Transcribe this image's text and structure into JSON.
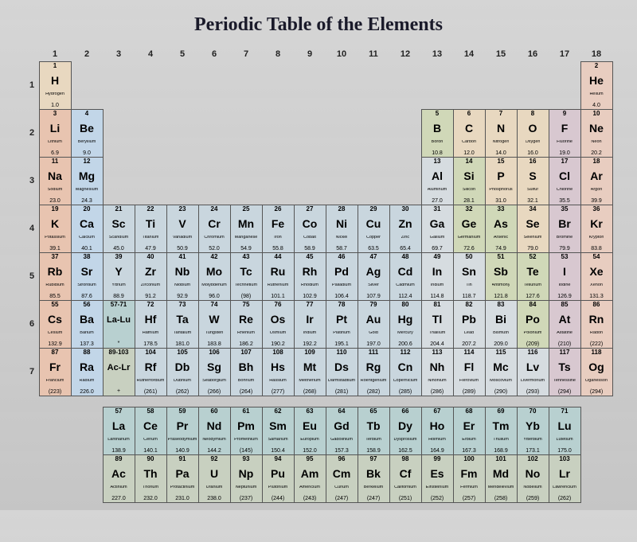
{
  "title": "Periodic Table of the Elements",
  "colors": {
    "alkali": "#e8c4b0",
    "alkaline": "#c2d6e8",
    "transition": "#c9d6de",
    "posttrans": "#d6dce0",
    "metalloid": "#d0d8b8",
    "nonmetal": "#e8d8c0",
    "halogen": "#d8c8d0",
    "noble": "#e8cdc0",
    "lanth": "#b8d0d0",
    "act": "#c8d0c0"
  },
  "groups": [
    "1",
    "2",
    "3",
    "4",
    "5",
    "6",
    "7",
    "8",
    "9",
    "10",
    "11",
    "12",
    "13",
    "14",
    "15",
    "16",
    "17",
    "18"
  ],
  "periods": [
    "1",
    "2",
    "3",
    "4",
    "5",
    "6",
    "7"
  ],
  "elements": [
    {
      "n": 1,
      "s": "H",
      "nm": "Hydrogen",
      "m": "1.0",
      "g": 1,
      "p": 1,
      "c": "nonmetal"
    },
    {
      "n": 2,
      "s": "He",
      "nm": "Helium",
      "m": "4.0",
      "g": 18,
      "p": 1,
      "c": "noble"
    },
    {
      "n": 3,
      "s": "Li",
      "nm": "Lithium",
      "m": "6.9",
      "g": 1,
      "p": 2,
      "c": "alkali"
    },
    {
      "n": 4,
      "s": "Be",
      "nm": "Beryllium",
      "m": "9.0",
      "g": 2,
      "p": 2,
      "c": "alkaline"
    },
    {
      "n": 5,
      "s": "B",
      "nm": "Boron",
      "m": "10.8",
      "g": 13,
      "p": 2,
      "c": "metalloid"
    },
    {
      "n": 6,
      "s": "C",
      "nm": "Carbon",
      "m": "12.0",
      "g": 14,
      "p": 2,
      "c": "nonmetal"
    },
    {
      "n": 7,
      "s": "N",
      "nm": "Nitrogen",
      "m": "14.0",
      "g": 15,
      "p": 2,
      "c": "nonmetal"
    },
    {
      "n": 8,
      "s": "O",
      "nm": "Oxygen",
      "m": "16.0",
      "g": 16,
      "p": 2,
      "c": "nonmetal"
    },
    {
      "n": 9,
      "s": "F",
      "nm": "Fluorine",
      "m": "19.0",
      "g": 17,
      "p": 2,
      "c": "halogen"
    },
    {
      "n": 10,
      "s": "Ne",
      "nm": "Neon",
      "m": "20.2",
      "g": 18,
      "p": 2,
      "c": "noble"
    },
    {
      "n": 11,
      "s": "Na",
      "nm": "Sodium",
      "m": "23.0",
      "g": 1,
      "p": 3,
      "c": "alkali"
    },
    {
      "n": 12,
      "s": "Mg",
      "nm": "Magnesium",
      "m": "24.3",
      "g": 2,
      "p": 3,
      "c": "alkaline"
    },
    {
      "n": 13,
      "s": "Al",
      "nm": "Aluminum",
      "m": "27.0",
      "g": 13,
      "p": 3,
      "c": "posttrans"
    },
    {
      "n": 14,
      "s": "Si",
      "nm": "Silicon",
      "m": "28.1",
      "g": 14,
      "p": 3,
      "c": "metalloid"
    },
    {
      "n": 15,
      "s": "P",
      "nm": "Phosphorus",
      "m": "31.0",
      "g": 15,
      "p": 3,
      "c": "nonmetal"
    },
    {
      "n": 16,
      "s": "S",
      "nm": "Sulfur",
      "m": "32.1",
      "g": 16,
      "p": 3,
      "c": "nonmetal"
    },
    {
      "n": 17,
      "s": "Cl",
      "nm": "Chlorine",
      "m": "35.5",
      "g": 17,
      "p": 3,
      "c": "halogen"
    },
    {
      "n": 18,
      "s": "Ar",
      "nm": "Argon",
      "m": "39.9",
      "g": 18,
      "p": 3,
      "c": "noble"
    },
    {
      "n": 19,
      "s": "K",
      "nm": "Potassium",
      "m": "39.1",
      "g": 1,
      "p": 4,
      "c": "alkali"
    },
    {
      "n": 20,
      "s": "Ca",
      "nm": "Calcium",
      "m": "40.1",
      "g": 2,
      "p": 4,
      "c": "alkaline"
    },
    {
      "n": 21,
      "s": "Sc",
      "nm": "Scandium",
      "m": "45.0",
      "g": 3,
      "p": 4,
      "c": "transition"
    },
    {
      "n": 22,
      "s": "Ti",
      "nm": "Titanium",
      "m": "47.9",
      "g": 4,
      "p": 4,
      "c": "transition"
    },
    {
      "n": 23,
      "s": "V",
      "nm": "Vanadium",
      "m": "50.9",
      "g": 5,
      "p": 4,
      "c": "transition"
    },
    {
      "n": 24,
      "s": "Cr",
      "nm": "Chromium",
      "m": "52.0",
      "g": 6,
      "p": 4,
      "c": "transition"
    },
    {
      "n": 25,
      "s": "Mn",
      "nm": "Manganese",
      "m": "54.9",
      "g": 7,
      "p": 4,
      "c": "transition"
    },
    {
      "n": 26,
      "s": "Fe",
      "nm": "Iron",
      "m": "55.8",
      "g": 8,
      "p": 4,
      "c": "transition"
    },
    {
      "n": 27,
      "s": "Co",
      "nm": "Cobalt",
      "m": "58.9",
      "g": 9,
      "p": 4,
      "c": "transition"
    },
    {
      "n": 28,
      "s": "Ni",
      "nm": "Nickel",
      "m": "58.7",
      "g": 10,
      "p": 4,
      "c": "transition"
    },
    {
      "n": 29,
      "s": "Cu",
      "nm": "Copper",
      "m": "63.5",
      "g": 11,
      "p": 4,
      "c": "transition"
    },
    {
      "n": 30,
      "s": "Zn",
      "nm": "Zinc",
      "m": "65.4",
      "g": 12,
      "p": 4,
      "c": "transition"
    },
    {
      "n": 31,
      "s": "Ga",
      "nm": "Gallium",
      "m": "69.7",
      "g": 13,
      "p": 4,
      "c": "posttrans"
    },
    {
      "n": 32,
      "s": "Ge",
      "nm": "Germanium",
      "m": "72.6",
      "g": 14,
      "p": 4,
      "c": "metalloid"
    },
    {
      "n": 33,
      "s": "As",
      "nm": "Arsenic",
      "m": "74.9",
      "g": 15,
      "p": 4,
      "c": "metalloid"
    },
    {
      "n": 34,
      "s": "Se",
      "nm": "Selenium",
      "m": "79.0",
      "g": 16,
      "p": 4,
      "c": "nonmetal"
    },
    {
      "n": 35,
      "s": "Br",
      "nm": "Bromine",
      "m": "79.9",
      "g": 17,
      "p": 4,
      "c": "halogen"
    },
    {
      "n": 36,
      "s": "Kr",
      "nm": "Krypton",
      "m": "83.8",
      "g": 18,
      "p": 4,
      "c": "noble"
    },
    {
      "n": 37,
      "s": "Rb",
      "nm": "Rubidium",
      "m": "85.5",
      "g": 1,
      "p": 5,
      "c": "alkali"
    },
    {
      "n": 38,
      "s": "Sr",
      "nm": "Strontium",
      "m": "87.6",
      "g": 2,
      "p": 5,
      "c": "alkaline"
    },
    {
      "n": 39,
      "s": "Y",
      "nm": "Yttrium",
      "m": "88.9",
      "g": 3,
      "p": 5,
      "c": "transition"
    },
    {
      "n": 40,
      "s": "Zr",
      "nm": "Zirconium",
      "m": "91.2",
      "g": 4,
      "p": 5,
      "c": "transition"
    },
    {
      "n": 41,
      "s": "Nb",
      "nm": "Niobium",
      "m": "92.9",
      "g": 5,
      "p": 5,
      "c": "transition"
    },
    {
      "n": 42,
      "s": "Mo",
      "nm": "Molybdenum",
      "m": "96.0",
      "g": 6,
      "p": 5,
      "c": "transition"
    },
    {
      "n": 43,
      "s": "Tc",
      "nm": "Technetium",
      "m": "(98)",
      "g": 7,
      "p": 5,
      "c": "transition"
    },
    {
      "n": 44,
      "s": "Ru",
      "nm": "Ruthenium",
      "m": "101.1",
      "g": 8,
      "p": 5,
      "c": "transition"
    },
    {
      "n": 45,
      "s": "Rh",
      "nm": "Rhodium",
      "m": "102.9",
      "g": 9,
      "p": 5,
      "c": "transition"
    },
    {
      "n": 46,
      "s": "Pd",
      "nm": "Palladium",
      "m": "106.4",
      "g": 10,
      "p": 5,
      "c": "transition"
    },
    {
      "n": 47,
      "s": "Ag",
      "nm": "Silver",
      "m": "107.9",
      "g": 11,
      "p": 5,
      "c": "transition"
    },
    {
      "n": 48,
      "s": "Cd",
      "nm": "Cadmium",
      "m": "112.4",
      "g": 12,
      "p": 5,
      "c": "transition"
    },
    {
      "n": 49,
      "s": "In",
      "nm": "Indium",
      "m": "114.8",
      "g": 13,
      "p": 5,
      "c": "posttrans"
    },
    {
      "n": 50,
      "s": "Sn",
      "nm": "Tin",
      "m": "118.7",
      "g": 14,
      "p": 5,
      "c": "posttrans"
    },
    {
      "n": 51,
      "s": "Sb",
      "nm": "Antimony",
      "m": "121.8",
      "g": 15,
      "p": 5,
      "c": "metalloid"
    },
    {
      "n": 52,
      "s": "Te",
      "nm": "Tellurium",
      "m": "127.6",
      "g": 16,
      "p": 5,
      "c": "metalloid"
    },
    {
      "n": 53,
      "s": "I",
      "nm": "Iodine",
      "m": "126.9",
      "g": 17,
      "p": 5,
      "c": "halogen"
    },
    {
      "n": 54,
      "s": "Xe",
      "nm": "Xenon",
      "m": "131.3",
      "g": 18,
      "p": 5,
      "c": "noble"
    },
    {
      "n": 55,
      "s": "Cs",
      "nm": "Cesium",
      "m": "132.9",
      "g": 1,
      "p": 6,
      "c": "alkali"
    },
    {
      "n": 56,
      "s": "Ba",
      "nm": "Barium",
      "m": "137.3",
      "g": 2,
      "p": 6,
      "c": "alkaline"
    },
    {
      "n": "57-71",
      "s": "La-Lu",
      "nm": "",
      "m": "*",
      "g": 3,
      "p": 6,
      "c": "lanth",
      "ph": true
    },
    {
      "n": 72,
      "s": "Hf",
      "nm": "Hafnium",
      "m": "178.5",
      "g": 4,
      "p": 6,
      "c": "transition"
    },
    {
      "n": 73,
      "s": "Ta",
      "nm": "Tantalum",
      "m": "181.0",
      "g": 5,
      "p": 6,
      "c": "transition"
    },
    {
      "n": 74,
      "s": "W",
      "nm": "Tungsten",
      "m": "183.8",
      "g": 6,
      "p": 6,
      "c": "transition"
    },
    {
      "n": 75,
      "s": "Re",
      "nm": "Rhenium",
      "m": "186.2",
      "g": 7,
      "p": 6,
      "c": "transition"
    },
    {
      "n": 76,
      "s": "Os",
      "nm": "Osmium",
      "m": "190.2",
      "g": 8,
      "p": 6,
      "c": "transition"
    },
    {
      "n": 77,
      "s": "Ir",
      "nm": "Iridium",
      "m": "192.2",
      "g": 9,
      "p": 6,
      "c": "transition"
    },
    {
      "n": 78,
      "s": "Pt",
      "nm": "Platinum",
      "m": "195.1",
      "g": 10,
      "p": 6,
      "c": "transition"
    },
    {
      "n": 79,
      "s": "Au",
      "nm": "Gold",
      "m": "197.0",
      "g": 11,
      "p": 6,
      "c": "transition"
    },
    {
      "n": 80,
      "s": "Hg",
      "nm": "Mercury",
      "m": "200.6",
      "g": 12,
      "p": 6,
      "c": "transition"
    },
    {
      "n": 81,
      "s": "Tl",
      "nm": "Thallium",
      "m": "204.4",
      "g": 13,
      "p": 6,
      "c": "posttrans"
    },
    {
      "n": 82,
      "s": "Pb",
      "nm": "Lead",
      "m": "207.2",
      "g": 14,
      "p": 6,
      "c": "posttrans"
    },
    {
      "n": 83,
      "s": "Bi",
      "nm": "Bismuth",
      "m": "209.0",
      "g": 15,
      "p": 6,
      "c": "posttrans"
    },
    {
      "n": 84,
      "s": "Po",
      "nm": "Polonium",
      "m": "(209)",
      "g": 16,
      "p": 6,
      "c": "metalloid"
    },
    {
      "n": 85,
      "s": "At",
      "nm": "Astatine",
      "m": "(210)",
      "g": 17,
      "p": 6,
      "c": "halogen"
    },
    {
      "n": 86,
      "s": "Rn",
      "nm": "Radon",
      "m": "(222)",
      "g": 18,
      "p": 6,
      "c": "noble"
    },
    {
      "n": 87,
      "s": "Fr",
      "nm": "Francium",
      "m": "(223)",
      "g": 1,
      "p": 7,
      "c": "alkali"
    },
    {
      "n": 88,
      "s": "Ra",
      "nm": "Radium",
      "m": "226.0",
      "g": 2,
      "p": 7,
      "c": "alkaline"
    },
    {
      "n": "89-103",
      "s": "Ac-Lr",
      "nm": "",
      "m": "+",
      "g": 3,
      "p": 7,
      "c": "act",
      "ph": true
    },
    {
      "n": 104,
      "s": "Rf",
      "nm": "Rutherfordium",
      "m": "(261)",
      "g": 4,
      "p": 7,
      "c": "transition"
    },
    {
      "n": 105,
      "s": "Db",
      "nm": "Dubnium",
      "m": "(262)",
      "g": 5,
      "p": 7,
      "c": "transition"
    },
    {
      "n": 106,
      "s": "Sg",
      "nm": "Seaborgium",
      "m": "(266)",
      "g": 6,
      "p": 7,
      "c": "transition"
    },
    {
      "n": 107,
      "s": "Bh",
      "nm": "Bohrium",
      "m": "(264)",
      "g": 7,
      "p": 7,
      "c": "transition"
    },
    {
      "n": 108,
      "s": "Hs",
      "nm": "Hassium",
      "m": "(277)",
      "g": 8,
      "p": 7,
      "c": "transition"
    },
    {
      "n": 109,
      "s": "Mt",
      "nm": "Meitnerium",
      "m": "(268)",
      "g": 9,
      "p": 7,
      "c": "transition"
    },
    {
      "n": 110,
      "s": "Ds",
      "nm": "Darmstadtium",
      "m": "(281)",
      "g": 10,
      "p": 7,
      "c": "transition"
    },
    {
      "n": 111,
      "s": "Rg",
      "nm": "Roentgenium",
      "m": "(282)",
      "g": 11,
      "p": 7,
      "c": "transition"
    },
    {
      "n": 112,
      "s": "Cn",
      "nm": "Copernicium",
      "m": "(285)",
      "g": 12,
      "p": 7,
      "c": "transition"
    },
    {
      "n": 113,
      "s": "Nh",
      "nm": "Nihonium",
      "m": "(286)",
      "g": 13,
      "p": 7,
      "c": "posttrans"
    },
    {
      "n": 114,
      "s": "Fl",
      "nm": "Flerovium",
      "m": "(289)",
      "g": 14,
      "p": 7,
      "c": "posttrans"
    },
    {
      "n": 115,
      "s": "Mc",
      "nm": "Moscovium",
      "m": "(290)",
      "g": 15,
      "p": 7,
      "c": "posttrans"
    },
    {
      "n": 116,
      "s": "Lv",
      "nm": "Livermorium",
      "m": "(293)",
      "g": 16,
      "p": 7,
      "c": "posttrans"
    },
    {
      "n": 117,
      "s": "Ts",
      "nm": "Tennessine",
      "m": "(294)",
      "g": 17,
      "p": 7,
      "c": "halogen"
    },
    {
      "n": 118,
      "s": "Og",
      "nm": "Oganesson",
      "m": "(294)",
      "g": 18,
      "p": 7,
      "c": "noble"
    }
  ],
  "lanth": [
    {
      "n": 57,
      "s": "La",
      "nm": "Lanthanum",
      "m": "138.9",
      "c": "lanth"
    },
    {
      "n": 58,
      "s": "Ce",
      "nm": "Cerium",
      "m": "140.1",
      "c": "lanth"
    },
    {
      "n": 59,
      "s": "Pr",
      "nm": "Praseodymium",
      "m": "140.9",
      "c": "lanth"
    },
    {
      "n": 60,
      "s": "Nd",
      "nm": "Neodymium",
      "m": "144.2",
      "c": "lanth"
    },
    {
      "n": 61,
      "s": "Pm",
      "nm": "Promethium",
      "m": "(145)",
      "c": "lanth"
    },
    {
      "n": 62,
      "s": "Sm",
      "nm": "Samarium",
      "m": "150.4",
      "c": "lanth"
    },
    {
      "n": 63,
      "s": "Eu",
      "nm": "Europium",
      "m": "152.0",
      "c": "lanth"
    },
    {
      "n": 64,
      "s": "Gd",
      "nm": "Gadolinium",
      "m": "157.3",
      "c": "lanth"
    },
    {
      "n": 65,
      "s": "Tb",
      "nm": "Terbium",
      "m": "158.9",
      "c": "lanth"
    },
    {
      "n": 66,
      "s": "Dy",
      "nm": "Dysprosium",
      "m": "162.5",
      "c": "lanth"
    },
    {
      "n": 67,
      "s": "Ho",
      "nm": "Holmium",
      "m": "164.9",
      "c": "lanth"
    },
    {
      "n": 68,
      "s": "Er",
      "nm": "Erbium",
      "m": "167.3",
      "c": "lanth"
    },
    {
      "n": 69,
      "s": "Tm",
      "nm": "Thulium",
      "m": "168.9",
      "c": "lanth"
    },
    {
      "n": 70,
      "s": "Yb",
      "nm": "Ytterbium",
      "m": "173.1",
      "c": "lanth"
    },
    {
      "n": 71,
      "s": "Lu",
      "nm": "Lutetium",
      "m": "175.0",
      "c": "lanth"
    }
  ],
  "act": [
    {
      "n": 89,
      "s": "Ac",
      "nm": "Actinium",
      "m": "227.0",
      "c": "act"
    },
    {
      "n": 90,
      "s": "Th",
      "nm": "Thorium",
      "m": "232.0",
      "c": "act"
    },
    {
      "n": 91,
      "s": "Pa",
      "nm": "Protactinium",
      "m": "231.0",
      "c": "act"
    },
    {
      "n": 92,
      "s": "U",
      "nm": "Uranium",
      "m": "238.0",
      "c": "act"
    },
    {
      "n": 93,
      "s": "Np",
      "nm": "Neptunium",
      "m": "(237)",
      "c": "act"
    },
    {
      "n": 94,
      "s": "Pu",
      "nm": "Plutonium",
      "m": "(244)",
      "c": "act"
    },
    {
      "n": 95,
      "s": "Am",
      "nm": "Americium",
      "m": "(243)",
      "c": "act"
    },
    {
      "n": 96,
      "s": "Cm",
      "nm": "Curium",
      "m": "(247)",
      "c": "act"
    },
    {
      "n": 97,
      "s": "Bk",
      "nm": "Berkelium",
      "m": "(247)",
      "c": "act"
    },
    {
      "n": 98,
      "s": "Cf",
      "nm": "Californium",
      "m": "(251)",
      "c": "act"
    },
    {
      "n": 99,
      "s": "Es",
      "nm": "Einsteinium",
      "m": "(252)",
      "c": "act"
    },
    {
      "n": 100,
      "s": "Fm",
      "nm": "Fermium",
      "m": "(257)",
      "c": "act"
    },
    {
      "n": 101,
      "s": "Md",
      "nm": "Mendelevium",
      "m": "(258)",
      "c": "act"
    },
    {
      "n": 102,
      "s": "No",
      "nm": "Nobelium",
      "m": "(259)",
      "c": "act"
    },
    {
      "n": 103,
      "s": "Lr",
      "nm": "Lawrencium",
      "m": "(262)",
      "c": "act"
    }
  ]
}
